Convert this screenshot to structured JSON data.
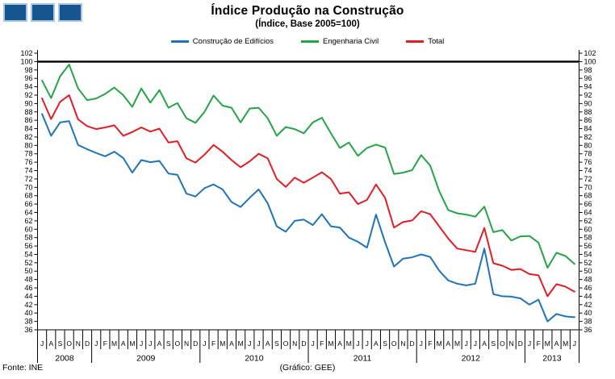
{
  "logo": {
    "square_count": 3,
    "color": "#15568F",
    "border_color": "#A9C7E4"
  },
  "footer": {
    "source": "Fonte: INE",
    "credit": "(Gráfico: GEE)"
  },
  "chart_data": {
    "type": "line",
    "title": "Índice Produção na Construção",
    "subtitle": "(Índice, Base 2005=100)",
    "legend_position": "top",
    "grid": false,
    "ylim": [
      36,
      102
    ],
    "ytick_step": 2,
    "ytick_sides": [
      "left",
      "right"
    ],
    "reference_line": 100,
    "x_start": "2008-07",
    "x_end": "2013-06",
    "x_months": [
      "J",
      "A",
      "S",
      "O",
      "N",
      "D",
      "J",
      "F",
      "M",
      "A",
      "M",
      "J",
      "J",
      "A",
      "S",
      "O",
      "N",
      "D",
      "J",
      "F",
      "M",
      "A",
      "M",
      "J",
      "J",
      "A",
      "S",
      "O",
      "N",
      "D",
      "J",
      "F",
      "M",
      "A",
      "M",
      "J",
      "J",
      "A",
      "S",
      "O",
      "N",
      "D",
      "J",
      "F",
      "M",
      "A",
      "M",
      "J",
      "J",
      "A",
      "S",
      "O",
      "N",
      "D",
      "J",
      "F",
      "M",
      "A",
      "M",
      "J"
    ],
    "x_years": [
      {
        "label": "2008",
        "start": 0,
        "count": 6
      },
      {
        "label": "2009",
        "start": 6,
        "count": 12
      },
      {
        "label": "2010",
        "start": 18,
        "count": 12
      },
      {
        "label": "2011",
        "start": 30,
        "count": 12
      },
      {
        "label": "2012",
        "start": 42,
        "count": 12
      },
      {
        "label": "2013",
        "start": 54,
        "count": 6
      }
    ],
    "series": [
      {
        "id": "construcao-de-edificios",
        "name": "Construção de Edifícios",
        "color": "#2173B8",
        "values": [
          87.5,
          82.3,
          85.5,
          85.8,
          80.1,
          79.1,
          78.2,
          77.4,
          78.5,
          77.0,
          73.5,
          76.5,
          76.0,
          76.3,
          73.3,
          73.0,
          68.5,
          67.8,
          69.8,
          70.7,
          69.5,
          66.5,
          65.3,
          67.5,
          69.5,
          66.2,
          60.7,
          59.4,
          62.0,
          62.3,
          61.0,
          63.6,
          60.7,
          60.4,
          58.0,
          57.0,
          55.6,
          63.5,
          56.9,
          51.1,
          53.0,
          53.3,
          54.0,
          53.4,
          50.1,
          47.8,
          47.0,
          46.6,
          47.0,
          55.4,
          44.5,
          44.0,
          43.9,
          43.5,
          42.0,
          43.2,
          38.0,
          39.8,
          39.2,
          39.0
        ]
      },
      {
        "id": "engenharia-civil",
        "name": "Engenharia Civil",
        "color": "#27A347",
        "values": [
          95.5,
          91.3,
          96.5,
          99.3,
          93.6,
          90.8,
          91.2,
          92.3,
          93.8,
          92.0,
          89.2,
          93.6,
          90.2,
          93.2,
          89.0,
          90.1,
          86.5,
          85.4,
          88.0,
          91.9,
          89.5,
          89.0,
          85.5,
          88.8,
          89.0,
          86.5,
          82.3,
          84.4,
          83.9,
          82.9,
          85.5,
          86.6,
          82.9,
          79.4,
          80.7,
          77.5,
          79.4,
          80.2,
          79.5,
          73.2,
          73.5,
          74.1,
          77.7,
          75.2,
          69.1,
          64.6,
          63.8,
          63.5,
          63.0,
          65.4,
          59.3,
          59.8,
          57.3,
          58.3,
          58.4,
          56.8,
          50.8,
          54.4,
          53.6,
          51.7
        ]
      },
      {
        "id": "total",
        "name": "Total",
        "color": "#E01E25",
        "values": [
          91.2,
          86.3,
          90.4,
          92.0,
          86.2,
          84.6,
          83.9,
          84.3,
          84.8,
          82.3,
          83.2,
          84.3,
          83.3,
          84.0,
          80.7,
          81.0,
          76.9,
          75.9,
          77.8,
          80.1,
          78.5,
          76.5,
          74.8,
          76.2,
          78.0,
          76.9,
          72.0,
          70.1,
          72.3,
          71.1,
          72.3,
          73.6,
          72.0,
          68.5,
          68.8,
          66.0,
          67.0,
          70.7,
          67.5,
          60.4,
          61.7,
          62.1,
          64.3,
          63.6,
          60.7,
          57.8,
          55.4,
          55.0,
          54.6,
          60.3,
          51.9,
          51.3,
          50.3,
          50.5,
          49.3,
          49.0,
          44.0,
          46.9,
          46.3,
          45.1
        ]
      }
    ]
  }
}
